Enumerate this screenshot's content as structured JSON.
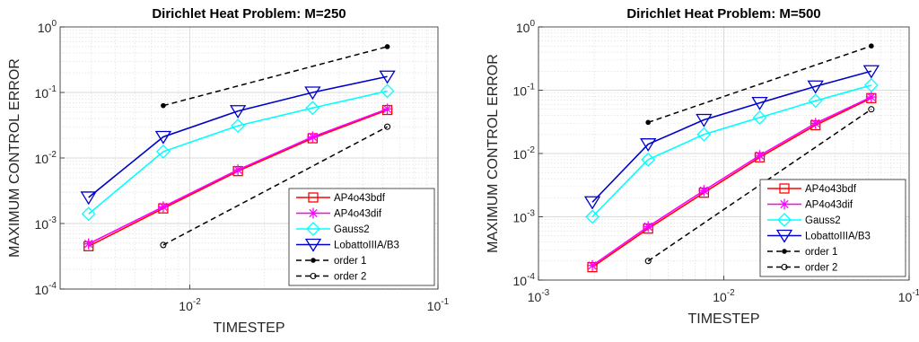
{
  "chart_data": [
    {
      "type": "line",
      "title": "Dirichlet Heat Problem: M=250",
      "xlabel": "TIMESTEP",
      "ylabel": "MAXIMUM CONTROL ERROR",
      "xscale": "log",
      "yscale": "log",
      "xlim": [
        0.003,
        0.1
      ],
      "ylim": [
        0.0001,
        1
      ],
      "xticks": [
        "10^-2",
        "10^-1"
      ],
      "yticks": [
        "10^-4",
        "10^-3",
        "10^-2",
        "10^-1",
        "10^0"
      ],
      "grid": true,
      "legend_position": "bottom-right",
      "series": [
        {
          "name": "AP4o43bdf",
          "color": "#ff0000",
          "marker": "square",
          "dash": "solid",
          "x": [
            0.00390625,
            0.0078125,
            0.015625,
            0.03125,
            0.0625
          ],
          "y": [
            0.00045,
            0.0017,
            0.0063,
            0.02,
            0.054
          ]
        },
        {
          "name": "AP4o43dif",
          "color": "#ff00ff",
          "marker": "asterisk",
          "dash": "solid",
          "x": [
            0.00390625,
            0.0078125,
            0.015625,
            0.03125,
            0.0625
          ],
          "y": [
            0.00049,
            0.0018,
            0.0066,
            0.021,
            0.056
          ]
        },
        {
          "name": "Gauss2",
          "color": "#00ffff",
          "marker": "diamond",
          "dash": "solid",
          "x": [
            0.00390625,
            0.0078125,
            0.015625,
            0.03125,
            0.0625
          ],
          "y": [
            0.0014,
            0.0125,
            0.031,
            0.058,
            0.105
          ]
        },
        {
          "name": "LobattoIIIA/B3",
          "color": "#0000cc",
          "marker": "triangle-down",
          "dash": "solid",
          "x": [
            0.00390625,
            0.0078125,
            0.015625,
            0.03125,
            0.0625
          ],
          "y": [
            0.0025,
            0.021,
            0.052,
            0.1,
            0.175
          ]
        },
        {
          "name": "order 1",
          "color": "#000000",
          "marker": "dot",
          "dash": "dashed",
          "x": [
            0.0078125,
            0.0625
          ],
          "y": [
            0.063,
            0.5
          ]
        },
        {
          "name": "order 2",
          "color": "#000000",
          "marker": "circle",
          "dash": "dashed",
          "x": [
            0.0078125,
            0.0625
          ],
          "y": [
            0.00047,
            0.03
          ]
        }
      ]
    },
    {
      "type": "line",
      "title": "Dirichlet Heat Problem: M=500",
      "xlabel": "TIMESTEP",
      "ylabel": "MAXIMUM CONTROL ERROR",
      "xscale": "log",
      "yscale": "log",
      "xlim": [
        0.001,
        0.1
      ],
      "ylim": [
        0.0001,
        1
      ],
      "xticks": [
        "10^-3",
        "10^-2",
        "10^-1"
      ],
      "yticks": [
        "10^-4",
        "10^-3",
        "10^-2",
        "10^-1",
        "10^0"
      ],
      "grid": true,
      "legend_position": "bottom-right",
      "series": [
        {
          "name": "AP4o43bdf",
          "color": "#ff0000",
          "marker": "square",
          "dash": "solid",
          "x": [
            0.001953125,
            0.00390625,
            0.0078125,
            0.015625,
            0.03125,
            0.0625
          ],
          "y": [
            0.00016,
            0.00065,
            0.0024,
            0.0087,
            0.028,
            0.075
          ]
        },
        {
          "name": "AP4o43dif",
          "color": "#ff00ff",
          "marker": "asterisk",
          "dash": "solid",
          "x": [
            0.001953125,
            0.00390625,
            0.0078125,
            0.015625,
            0.03125,
            0.0625
          ],
          "y": [
            0.00017,
            0.0007,
            0.0026,
            0.0093,
            0.03,
            0.078
          ]
        },
        {
          "name": "Gauss2",
          "color": "#00ffff",
          "marker": "diamond",
          "dash": "solid",
          "x": [
            0.001953125,
            0.00390625,
            0.0078125,
            0.015625,
            0.03125,
            0.0625
          ],
          "y": [
            0.001,
            0.008,
            0.02,
            0.037,
            0.068,
            0.12
          ]
        },
        {
          "name": "LobattoIIIA/B3",
          "color": "#0000cc",
          "marker": "triangle-down",
          "dash": "solid",
          "x": [
            0.001953125,
            0.00390625,
            0.0078125,
            0.015625,
            0.03125,
            0.0625
          ],
          "y": [
            0.0017,
            0.014,
            0.034,
            0.063,
            0.115,
            0.2
          ]
        },
        {
          "name": "order 1",
          "color": "#000000",
          "marker": "dot",
          "dash": "dashed",
          "x": [
            0.00390625,
            0.0625
          ],
          "y": [
            0.031,
            0.5
          ]
        },
        {
          "name": "order 2",
          "color": "#000000",
          "marker": "circle",
          "dash": "dashed",
          "x": [
            0.00390625,
            0.0625
          ],
          "y": [
            0.0002,
            0.05
          ]
        }
      ]
    }
  ]
}
